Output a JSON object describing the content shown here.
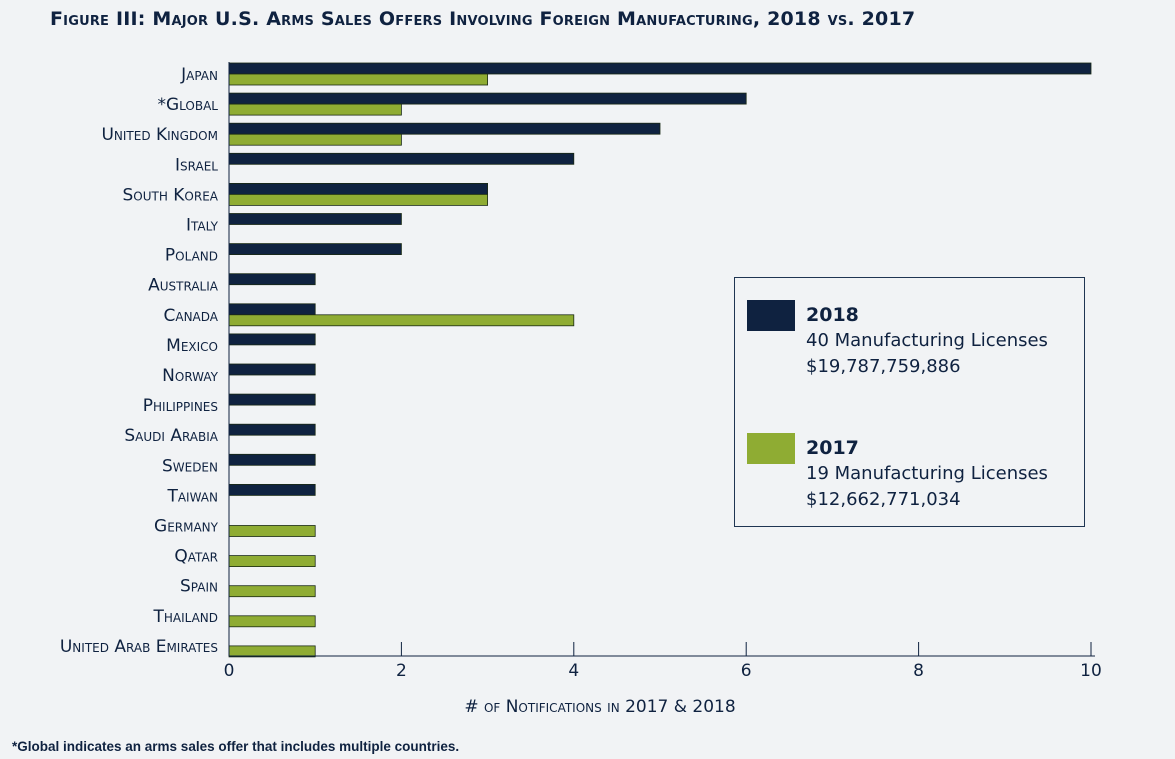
{
  "chart_data": {
    "type": "bar",
    "orientation": "horizontal",
    "title": "Figure III: Major U.S. Arms Sales Offers Involving Foreign Manufacturing, 2018 vs. 2017",
    "xlabel": "# of Notifications in 2017 & 2018",
    "ylabel": "",
    "xlim": [
      0,
      10
    ],
    "xticks": [
      0,
      2,
      4,
      6,
      8,
      10
    ],
    "grid": false,
    "legend_position": "right",
    "categories": [
      "Japan",
      "*Global",
      "United Kingdom",
      "Israel",
      "South Korea",
      "Italy",
      "Poland",
      "Australia",
      "Canada",
      "Mexico",
      "Norway",
      "Philippines",
      "Saudi Arabia",
      "Sweden",
      "Taiwan",
      "Germany",
      "Qatar",
      "Spain",
      "Thailand",
      "United Arab Emirates"
    ],
    "series": [
      {
        "name": "2018",
        "color": "#0f2240",
        "values": [
          10,
          6,
          5,
          4,
          3,
          2,
          2,
          1,
          1,
          1,
          1,
          1,
          1,
          1,
          1,
          0,
          0,
          0,
          0,
          0
        ]
      },
      {
        "name": "2017",
        "color": "#8fac33",
        "values": [
          3,
          2,
          2,
          0,
          3,
          0,
          0,
          0,
          4,
          0,
          0,
          0,
          0,
          0,
          0,
          1,
          1,
          1,
          1,
          1
        ]
      }
    ],
    "legend": [
      {
        "name": "2018",
        "line1": "40 Manufacturing Licenses",
        "line2": "$19,787,759,886"
      },
      {
        "name": "2017",
        "line1": "19 Manufacturing Licenses",
        "line2": "$12,662,771,034"
      }
    ],
    "footnote": "*Global indicates an arms sales offer that includes multiple countries."
  }
}
